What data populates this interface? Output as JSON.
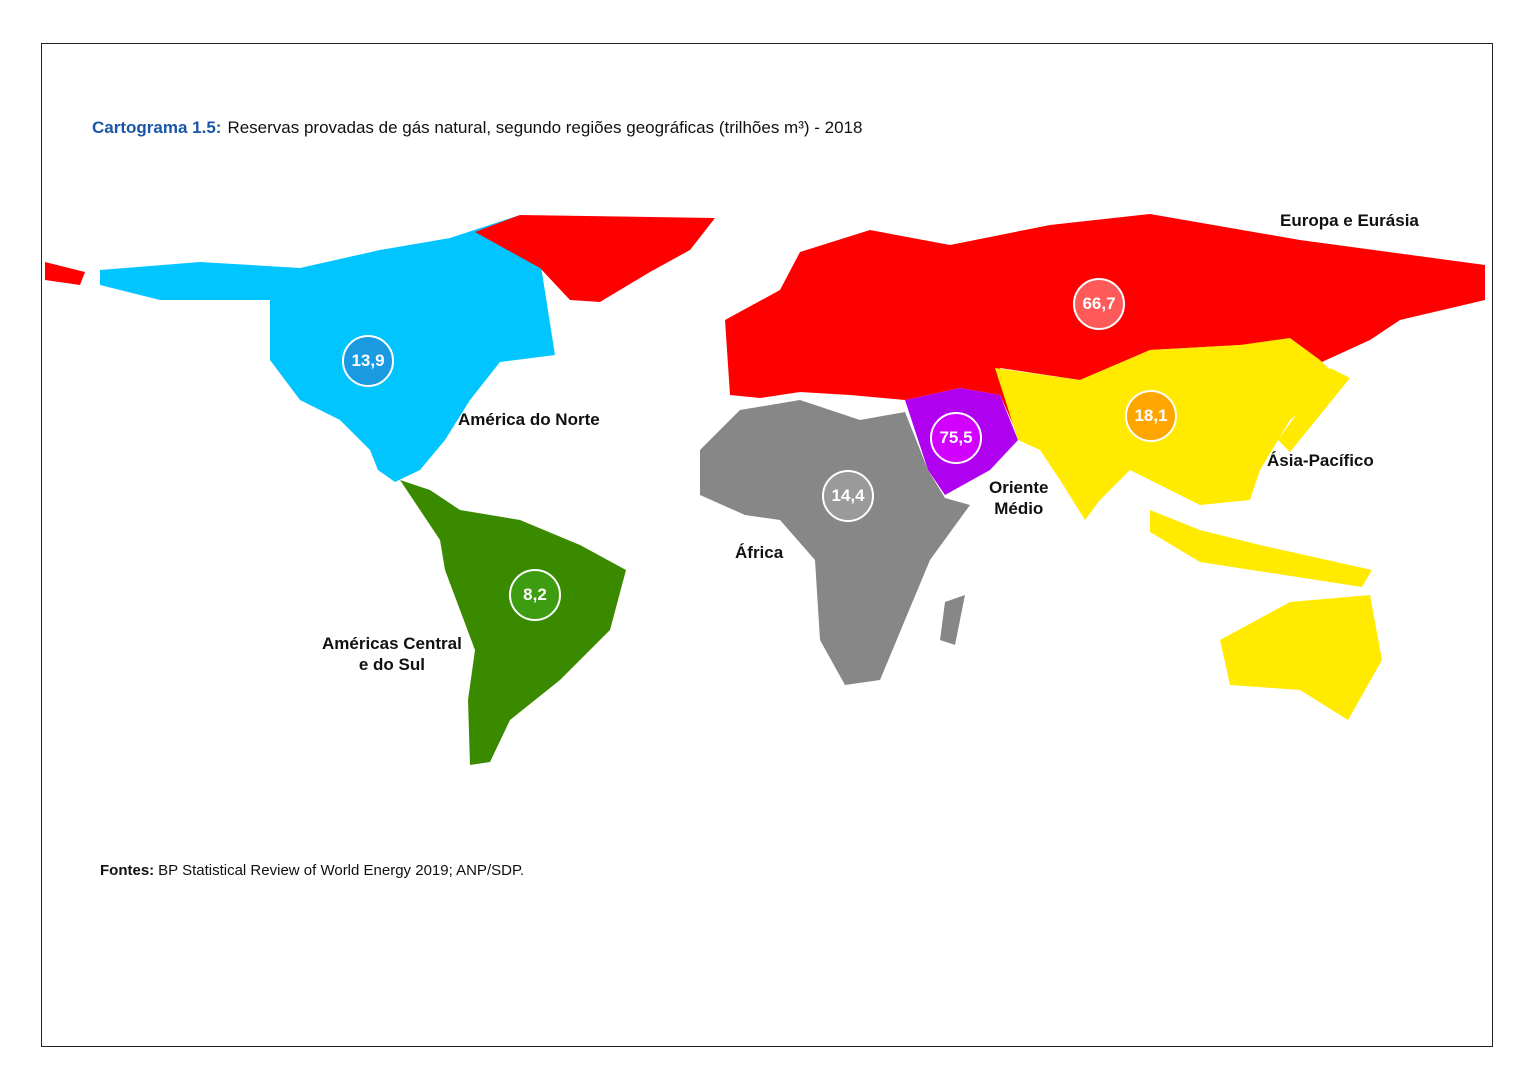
{
  "title": {
    "label": "Cartograma 1.5:",
    "text": "Reservas provadas de gás natural, segundo regiões geográficas (trilhões m³) - 2018"
  },
  "unit": "trilhões m³",
  "regions": [
    {
      "name": "América do Norte",
      "value": "13,9",
      "color": "#00c5ff",
      "bubble_color": "#1a9ae0"
    },
    {
      "name": "Américas Central e do Sul",
      "value": "8,2",
      "color": "#3a8a00",
      "bubble_color": "#3e9c10"
    },
    {
      "name": "Europa e Eurásia",
      "value": "66,7",
      "color": "#ff0000",
      "bubble_color": "#ff5a5a"
    },
    {
      "name": "África",
      "value": "14,4",
      "color": "#878787",
      "bubble_color": "#9a9a9a"
    },
    {
      "name": "Oriente Médio",
      "value": "75,5",
      "color": "#b000f0",
      "bubble_color": "#d200ff"
    },
    {
      "name": "Ásia-Pacífico",
      "value": "18,1",
      "color": "#ffea00",
      "bubble_color": "#ffa500"
    }
  ],
  "region_labels": {
    "sa_line1": "Américas Central",
    "sa_line2": "e do Sul",
    "me_line1": "Oriente",
    "me_line2": "Médio"
  },
  "source": {
    "label": "Fontes:",
    "text": "BP Statistical Review of World Energy 2019; ANP/SDP."
  }
}
